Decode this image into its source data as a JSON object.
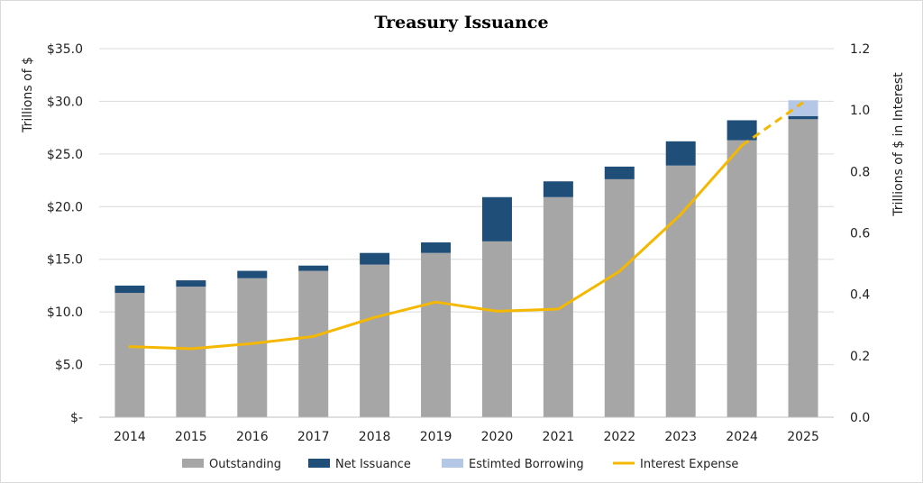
{
  "chart_data": {
    "type": "bar",
    "title": "Treasury Issuance",
    "ylabel": "Trillions of $",
    "y2label": "Trillions of $ in Interest",
    "ylim": [
      0,
      35
    ],
    "y2lim": [
      0,
      1.2
    ],
    "yticks": [
      "$-",
      "$5.0",
      "$10.0",
      "$15.0",
      "$20.0",
      "$25.0",
      "$30.0",
      "$35.0"
    ],
    "y2ticks": [
      "0.0",
      "0.2",
      "0.4",
      "0.6",
      "0.8",
      "1.0",
      "1.2"
    ],
    "categories": [
      "2014",
      "2015",
      "2016",
      "2017",
      "2018",
      "2019",
      "2020",
      "2021",
      "2022",
      "2023",
      "2024",
      "2025"
    ],
    "series": [
      {
        "name": "Outstanding",
        "type": "bar-stacked",
        "color": "#a6a6a6",
        "values": [
          11.8,
          12.4,
          13.2,
          13.9,
          14.5,
          15.6,
          16.7,
          20.9,
          22.6,
          23.9,
          26.3,
          28.3
        ]
      },
      {
        "name": "Net Issuance",
        "type": "bar-stacked",
        "color": "#1f4e79",
        "values": [
          0.7,
          0.6,
          0.7,
          0.5,
          1.1,
          1.0,
          4.2,
          1.5,
          1.2,
          2.3,
          1.9,
          0.3
        ]
      },
      {
        "name": "Estimted Borrowing",
        "type": "bar-stacked",
        "color": "#b4c7e7",
        "values": [
          0,
          0,
          0,
          0,
          0,
          0,
          0,
          0,
          0,
          0,
          0,
          1.5
        ]
      },
      {
        "name": "Interest Expense",
        "type": "line",
        "axis": "right",
        "color": "#f5b800",
        "values": [
          0.23,
          0.223,
          0.24,
          0.263,
          0.325,
          0.375,
          0.345,
          0.352,
          0.475,
          0.66,
          0.885,
          1.025
        ],
        "dashed_from_index": 10
      }
    ],
    "legend": "bottom"
  }
}
